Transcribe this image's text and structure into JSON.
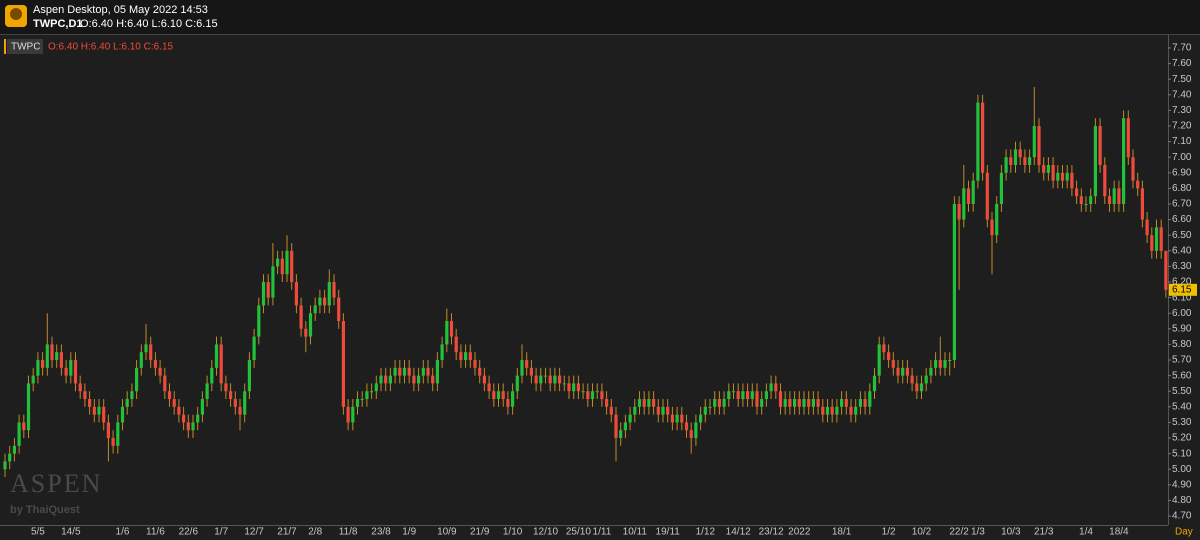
{
  "header": {
    "app": "Aspen Desktop, 05 May 2022 14:53",
    "symbol": "TWPC,D1",
    "ohlc": "O:6.40 H:6.40 L:6.10 C:6.15"
  },
  "watermark": {
    "brand": "ASPEN",
    "by": "by ThaiQuest"
  },
  "chart_data": {
    "type": "candlestick",
    "legend": {
      "symbol": "TWPC",
      "ohlc": "O:6.40 H:6.40 L:6.10 C:6.15"
    },
    "timeframe": "Day",
    "up_color": "#22c13a",
    "down_color": "#ee4b3c",
    "wick_color": "#c08a2a",
    "ylim": [
      4.64,
      7.78
    ],
    "yticks": [
      {
        "value": 4.7,
        "label": "4.70"
      },
      {
        "value": 4.8,
        "label": "4.80"
      },
      {
        "value": 4.9,
        "label": "4.90"
      },
      {
        "value": 5,
        "label": "5.00"
      },
      {
        "value": 5.1,
        "label": "5.10"
      },
      {
        "value": 5.2,
        "label": "5.20"
      },
      {
        "value": 5.3,
        "label": "5.30"
      },
      {
        "value": 5.4,
        "label": "5.40"
      },
      {
        "value": 5.5,
        "label": "5.50"
      },
      {
        "value": 5.6,
        "label": "5.60"
      },
      {
        "value": 5.7,
        "label": "5.70"
      },
      {
        "value": 5.8,
        "label": "5.80"
      },
      {
        "value": 5.9,
        "label": "5.90"
      },
      {
        "value": 6,
        "label": "6.00"
      },
      {
        "value": 6.1,
        "label": "6.10"
      },
      {
        "value": 6.2,
        "label": "6.20"
      },
      {
        "value": 6.3,
        "label": "6.30"
      },
      {
        "value": 6.4,
        "label": "6.40"
      },
      {
        "value": 6.5,
        "label": "6.50"
      },
      {
        "value": 6.6,
        "label": "6.60"
      },
      {
        "value": 6.7,
        "label": "6.70"
      },
      {
        "value": 6.8,
        "label": "6.80"
      },
      {
        "value": 6.9,
        "label": "6.90"
      },
      {
        "value": 7,
        "label": "7.00"
      },
      {
        "value": 7.1,
        "label": "7.10"
      },
      {
        "value": 7.2,
        "label": "7.20"
      },
      {
        "value": 7.3,
        "label": "7.30"
      },
      {
        "value": 7.4,
        "label": "7.40"
      },
      {
        "value": 7.5,
        "label": "7.50"
      },
      {
        "value": 7.6,
        "label": "7.60"
      },
      {
        "value": 7.7,
        "label": "7.70"
      }
    ],
    "categories": [
      null,
      null,
      null,
      null,
      null,
      null,
      null,
      "5/5",
      null,
      null,
      null,
      null,
      null,
      null,
      "14/5",
      null,
      null,
      null,
      null,
      null,
      null,
      null,
      null,
      null,
      null,
      "1/6",
      null,
      null,
      null,
      null,
      null,
      null,
      "11/6",
      null,
      null,
      null,
      null,
      null,
      null,
      "22/6",
      null,
      null,
      null,
      null,
      null,
      null,
      "1/7",
      null,
      null,
      null,
      null,
      null,
      null,
      "12/7",
      null,
      null,
      null,
      null,
      null,
      null,
      "21/7",
      null,
      null,
      null,
      null,
      null,
      "2/8",
      null,
      null,
      null,
      null,
      null,
      null,
      "11/8",
      null,
      null,
      null,
      null,
      null,
      null,
      "23/8",
      null,
      null,
      null,
      null,
      null,
      "1/9",
      null,
      null,
      null,
      null,
      null,
      null,
      null,
      "10/9",
      null,
      null,
      null,
      null,
      null,
      null,
      "21/9",
      null,
      null,
      null,
      null,
      null,
      null,
      "1/10",
      null,
      null,
      null,
      null,
      null,
      null,
      "12/10",
      null,
      null,
      null,
      null,
      null,
      null,
      "25/10",
      null,
      null,
      null,
      null,
      "1/11",
      null,
      null,
      null,
      null,
      null,
      null,
      "10/11",
      null,
      null,
      null,
      null,
      null,
      null,
      "19/11",
      null,
      null,
      null,
      null,
      null,
      null,
      null,
      "1/12",
      null,
      null,
      null,
      null,
      null,
      null,
      "14/12",
      null,
      null,
      null,
      null,
      null,
      null,
      "23/12",
      null,
      null,
      null,
      null,
      null,
      "2022",
      null,
      null,
      null,
      null,
      null,
      null,
      null,
      null,
      "18/1",
      null,
      null,
      null,
      null,
      null,
      null,
      null,
      null,
      null,
      "1/2",
      null,
      null,
      null,
      null,
      null,
      null,
      "10/2",
      null,
      null,
      null,
      null,
      null,
      null,
      null,
      "22/2",
      null,
      null,
      null,
      "1/3",
      null,
      null,
      null,
      null,
      null,
      null,
      "10/3",
      null,
      null,
      null,
      null,
      null,
      null,
      "21/3",
      null,
      null,
      null,
      null,
      null,
      null,
      null,
      null,
      "1/4",
      null,
      null,
      null,
      null,
      null,
      null,
      "18/4",
      null,
      null,
      null,
      null,
      null,
      null,
      null,
      null,
      null,
      null
    ],
    "open": [
      5.0,
      5.05,
      5.1,
      5.15,
      5.3,
      5.25,
      5.55,
      5.6,
      5.7,
      5.65,
      5.8,
      5.7,
      5.75,
      5.65,
      5.6,
      5.7,
      5.55,
      5.5,
      5.45,
      5.4,
      5.35,
      5.4,
      5.3,
      5.2,
      5.15,
      5.3,
      5.4,
      5.45,
      5.5,
      5.65,
      5.75,
      5.8,
      5.7,
      5.65,
      5.6,
      5.5,
      5.45,
      5.4,
      5.35,
      5.3,
      5.25,
      5.3,
      5.35,
      5.45,
      5.55,
      5.65,
      5.8,
      5.55,
      5.5,
      5.45,
      5.4,
      5.35,
      5.5,
      5.7,
      5.85,
      6.05,
      6.2,
      6.1,
      6.3,
      6.35,
      6.25,
      6.4,
      6.2,
      6.05,
      5.9,
      5.85,
      6.0,
      6.05,
      6.1,
      6.05,
      6.2,
      6.1,
      5.95,
      5.4,
      5.3,
      5.4,
      5.45,
      5.45,
      5.5,
      5.5,
      5.55,
      5.6,
      5.55,
      5.6,
      5.65,
      5.6,
      5.65,
      5.6,
      5.55,
      5.6,
      5.65,
      5.6,
      5.55,
      5.7,
      5.8,
      5.95,
      5.85,
      5.75,
      5.7,
      5.75,
      5.7,
      5.65,
      5.6,
      5.55,
      5.5,
      5.45,
      5.5,
      5.45,
      5.4,
      5.5,
      5.6,
      5.7,
      5.65,
      5.6,
      5.55,
      5.6,
      5.6,
      5.55,
      5.6,
      5.55,
      5.55,
      5.5,
      5.55,
      5.5,
      5.5,
      5.45,
      5.5,
      5.5,
      5.45,
      5.4,
      5.35,
      5.2,
      5.25,
      5.3,
      5.35,
      5.4,
      5.45,
      5.4,
      5.45,
      5.4,
      5.35,
      5.4,
      5.35,
      5.3,
      5.35,
      5.3,
      5.25,
      5.2,
      5.3,
      5.35,
      5.4,
      5.4,
      5.45,
      5.4,
      5.45,
      5.5,
      5.5,
      5.45,
      5.5,
      5.45,
      5.5,
      5.4,
      5.45,
      5.5,
      5.55,
      5.5,
      5.4,
      5.45,
      5.4,
      5.45,
      5.4,
      5.45,
      5.4,
      5.45,
      5.4,
      5.35,
      5.4,
      5.35,
      5.4,
      5.45,
      5.4,
      5.35,
      5.4,
      5.45,
      5.4,
      5.5,
      5.6,
      5.8,
      5.75,
      5.7,
      5.65,
      5.6,
      5.65,
      5.6,
      5.55,
      5.5,
      5.55,
      5.6,
      5.65,
      5.7,
      5.65,
      5.7,
      5.7,
      6.7,
      6.6,
      6.8,
      6.7,
      6.85,
      7.35,
      6.9,
      6.6,
      6.5,
      6.7,
      6.9,
      7.0,
      6.95,
      7.05,
      7.0,
      6.95,
      7.0,
      7.2,
      6.95,
      6.9,
      6.95,
      6.85,
      6.9,
      6.85,
      6.9,
      6.8,
      6.75,
      6.7,
      6.7,
      6.75,
      7.2,
      6.95,
      6.75,
      6.7,
      6.8,
      6.7,
      7.25,
      7.0,
      6.85,
      6.8,
      6.6,
      6.5,
      6.4,
      6.55,
      6.4
    ],
    "high": [
      5.1,
      5.15,
      5.2,
      5.35,
      5.35,
      5.6,
      5.65,
      5.75,
      5.75,
      6.0,
      5.85,
      5.8,
      5.8,
      5.7,
      5.75,
      5.75,
      5.6,
      5.55,
      5.5,
      5.45,
      5.45,
      5.45,
      5.35,
      5.25,
      5.35,
      5.45,
      5.5,
      5.55,
      5.7,
      5.8,
      5.93,
      5.85,
      5.75,
      5.7,
      5.65,
      5.55,
      5.5,
      5.45,
      5.4,
      5.35,
      5.35,
      5.4,
      5.5,
      5.6,
      5.7,
      5.85,
      5.85,
      5.6,
      5.55,
      5.5,
      5.45,
      5.55,
      5.75,
      5.9,
      6.1,
      6.25,
      6.25,
      6.45,
      6.4,
      6.4,
      6.5,
      6.45,
      6.25,
      6.1,
      5.95,
      6.05,
      6.1,
      6.15,
      6.15,
      6.28,
      6.25,
      6.15,
      6.0,
      5.45,
      5.45,
      5.5,
      5.5,
      5.55,
      5.55,
      5.6,
      5.65,
      5.65,
      5.65,
      5.7,
      5.7,
      5.7,
      5.7,
      5.65,
      5.65,
      5.7,
      5.7,
      5.65,
      5.75,
      5.85,
      6.03,
      6.0,
      5.9,
      5.8,
      5.8,
      5.8,
      5.75,
      5.7,
      5.65,
      5.6,
      5.55,
      5.55,
      5.55,
      5.5,
      5.55,
      5.65,
      5.8,
      5.75,
      5.7,
      5.65,
      5.65,
      5.65,
      5.65,
      5.65,
      5.65,
      5.6,
      5.6,
      5.6,
      5.6,
      5.55,
      5.55,
      5.55,
      5.55,
      5.55,
      5.5,
      5.45,
      5.4,
      5.3,
      5.35,
      5.4,
      5.45,
      5.5,
      5.5,
      5.5,
      5.5,
      5.45,
      5.45,
      5.45,
      5.4,
      5.4,
      5.4,
      5.35,
      5.3,
      5.35,
      5.4,
      5.45,
      5.45,
      5.5,
      5.5,
      5.5,
      5.55,
      5.55,
      5.55,
      5.55,
      5.55,
      5.55,
      5.55,
      5.5,
      5.55,
      5.6,
      5.6,
      5.55,
      5.5,
      5.5,
      5.5,
      5.5,
      5.5,
      5.5,
      5.5,
      5.5,
      5.45,
      5.45,
      5.45,
      5.45,
      5.5,
      5.5,
      5.45,
      5.45,
      5.5,
      5.5,
      5.55,
      5.65,
      5.85,
      5.85,
      5.8,
      5.75,
      5.7,
      5.7,
      5.7,
      5.65,
      5.6,
      5.6,
      5.65,
      5.7,
      5.75,
      5.85,
      5.75,
      5.75,
      6.75,
      6.75,
      6.95,
      6.85,
      6.9,
      7.4,
      7.4,
      6.95,
      6.65,
      6.75,
      6.95,
      7.05,
      7.05,
      7.1,
      7.1,
      7.05,
      7.05,
      7.45,
      7.25,
      7.0,
      7.0,
      7.0,
      6.95,
      6.95,
      6.95,
      6.95,
      6.85,
      6.8,
      6.75,
      6.8,
      7.25,
      7.25,
      7.0,
      6.8,
      6.85,
      6.85,
      7.3,
      7.3,
      7.05,
      6.9,
      6.85,
      6.65,
      6.55,
      6.6,
      6.6,
      6.4
    ],
    "low": [
      4.95,
      5.0,
      5.05,
      5.1,
      5.2,
      5.2,
      5.5,
      5.55,
      5.6,
      5.6,
      5.65,
      5.65,
      5.6,
      5.55,
      5.55,
      5.5,
      5.45,
      5.4,
      5.35,
      5.3,
      5.3,
      5.25,
      5.05,
      5.1,
      5.1,
      5.25,
      5.35,
      5.4,
      5.45,
      5.6,
      5.7,
      5.65,
      5.6,
      5.55,
      5.45,
      5.4,
      5.35,
      5.3,
      5.25,
      5.2,
      5.2,
      5.25,
      5.3,
      5.4,
      5.5,
      5.6,
      5.5,
      5.45,
      5.4,
      5.35,
      5.25,
      5.3,
      5.45,
      5.65,
      5.8,
      6.0,
      6.05,
      6.05,
      6.25,
      6.2,
      6.2,
      6.15,
      6.0,
      5.85,
      5.75,
      5.8,
      5.95,
      6.0,
      6.0,
      6.0,
      6.05,
      5.9,
      5.35,
      5.25,
      5.25,
      5.35,
      5.4,
      5.4,
      5.45,
      5.45,
      5.5,
      5.5,
      5.5,
      5.55,
      5.55,
      5.55,
      5.55,
      5.5,
      5.5,
      5.55,
      5.55,
      5.5,
      5.5,
      5.65,
      5.75,
      5.8,
      5.7,
      5.65,
      5.65,
      5.65,
      5.6,
      5.55,
      5.5,
      5.45,
      5.4,
      5.4,
      5.4,
      5.35,
      5.35,
      5.45,
      5.55,
      5.6,
      5.55,
      5.5,
      5.5,
      5.55,
      5.5,
      5.5,
      5.5,
      5.5,
      5.45,
      5.45,
      5.45,
      5.45,
      5.4,
      5.4,
      5.45,
      5.4,
      5.35,
      5.3,
      5.05,
      5.15,
      5.2,
      5.25,
      5.3,
      5.35,
      5.35,
      5.35,
      5.35,
      5.3,
      5.3,
      5.3,
      5.25,
      5.25,
      5.25,
      5.2,
      5.1,
      5.15,
      5.25,
      5.3,
      5.35,
      5.35,
      5.35,
      5.35,
      5.4,
      5.45,
      5.4,
      5.4,
      5.4,
      5.4,
      5.35,
      5.35,
      5.4,
      5.45,
      5.45,
      5.35,
      5.35,
      5.35,
      5.35,
      5.35,
      5.35,
      5.35,
      5.35,
      5.35,
      5.3,
      5.3,
      5.3,
      5.3,
      5.35,
      5.35,
      5.3,
      5.3,
      5.35,
      5.35,
      5.35,
      5.45,
      5.55,
      5.7,
      5.65,
      5.6,
      5.55,
      5.55,
      5.55,
      5.5,
      5.45,
      5.45,
      5.5,
      5.55,
      5.6,
      5.6,
      5.6,
      5.6,
      5.65,
      6.15,
      6.55,
      6.65,
      6.65,
      6.8,
      6.85,
      6.55,
      6.25,
      6.45,
      6.65,
      6.85,
      6.9,
      6.9,
      6.95,
      6.9,
      6.9,
      6.95,
      6.9,
      6.85,
      6.85,
      6.8,
      6.8,
      6.8,
      6.8,
      6.75,
      6.7,
      6.65,
      6.65,
      6.65,
      6.7,
      6.9,
      6.7,
      6.65,
      6.65,
      6.65,
      6.65,
      6.95,
      6.8,
      6.75,
      6.55,
      6.45,
      6.35,
      6.35,
      6.35,
      6.1
    ],
    "close": [
      5.05,
      5.1,
      5.15,
      5.3,
      5.25,
      5.55,
      5.6,
      5.7,
      5.65,
      5.8,
      5.7,
      5.75,
      5.65,
      5.6,
      5.7,
      5.55,
      5.5,
      5.45,
      5.4,
      5.35,
      5.4,
      5.3,
      5.2,
      5.15,
      5.3,
      5.4,
      5.45,
      5.5,
      5.65,
      5.75,
      5.8,
      5.7,
      5.65,
      5.6,
      5.5,
      5.45,
      5.4,
      5.35,
      5.3,
      5.25,
      5.3,
      5.35,
      5.45,
      5.55,
      5.65,
      5.8,
      5.55,
      5.5,
      5.45,
      5.4,
      5.35,
      5.5,
      5.7,
      5.85,
      6.05,
      6.2,
      6.1,
      6.3,
      6.35,
      6.25,
      6.4,
      6.2,
      6.05,
      5.9,
      5.85,
      6.0,
      6.05,
      6.1,
      6.05,
      6.2,
      6.1,
      5.95,
      5.4,
      5.3,
      5.4,
      5.45,
      5.45,
      5.5,
      5.5,
      5.55,
      5.6,
      5.55,
      5.6,
      5.65,
      5.6,
      5.65,
      5.6,
      5.55,
      5.6,
      5.65,
      5.6,
      5.55,
      5.7,
      5.8,
      5.95,
      5.85,
      5.75,
      5.7,
      5.75,
      5.7,
      5.65,
      5.6,
      5.55,
      5.5,
      5.45,
      5.5,
      5.45,
      5.4,
      5.5,
      5.6,
      5.7,
      5.65,
      5.6,
      5.55,
      5.6,
      5.6,
      5.55,
      5.6,
      5.55,
      5.55,
      5.5,
      5.55,
      5.5,
      5.5,
      5.45,
      5.5,
      5.5,
      5.45,
      5.4,
      5.35,
      5.2,
      5.25,
      5.3,
      5.35,
      5.4,
      5.45,
      5.4,
      5.45,
      5.4,
      5.35,
      5.4,
      5.35,
      5.3,
      5.35,
      5.3,
      5.25,
      5.2,
      5.3,
      5.35,
      5.4,
      5.4,
      5.45,
      5.4,
      5.45,
      5.5,
      5.5,
      5.45,
      5.5,
      5.45,
      5.5,
      5.4,
      5.45,
      5.5,
      5.55,
      5.5,
      5.4,
      5.45,
      5.4,
      5.45,
      5.4,
      5.45,
      5.4,
      5.45,
      5.4,
      5.35,
      5.4,
      5.35,
      5.4,
      5.45,
      5.4,
      5.35,
      5.4,
      5.45,
      5.4,
      5.5,
      5.6,
      5.8,
      5.75,
      5.7,
      5.65,
      5.6,
      5.65,
      5.6,
      5.55,
      5.5,
      5.55,
      5.6,
      5.65,
      5.7,
      5.65,
      5.7,
      5.7,
      6.7,
      6.6,
      6.8,
      6.7,
      6.85,
      7.35,
      6.9,
      6.6,
      6.5,
      6.7,
      6.9,
      7.0,
      6.95,
      7.05,
      7.0,
      6.95,
      7.0,
      7.2,
      6.95,
      6.9,
      6.95,
      6.85,
      6.9,
      6.85,
      6.9,
      6.8,
      6.75,
      6.7,
      6.7,
      6.75,
      7.2,
      6.95,
      6.75,
      6.7,
      6.8,
      6.7,
      7.25,
      7.0,
      6.85,
      6.8,
      6.6,
      6.5,
      6.4,
      6.55,
      6.4,
      6.15
    ]
  }
}
